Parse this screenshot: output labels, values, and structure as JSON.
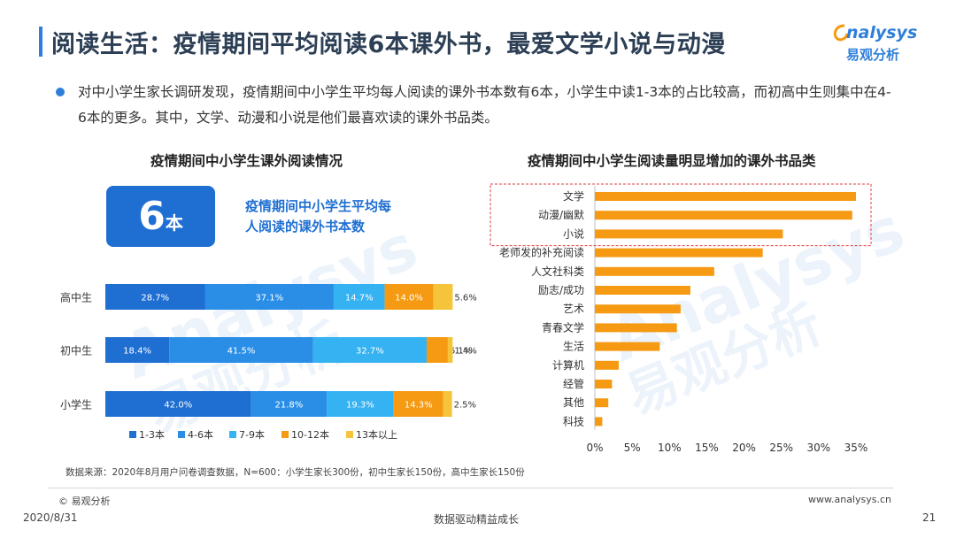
{
  "header": {
    "title": "阅读生活：疫情期间平均阅读6本课外书，最爱文学小说与动漫",
    "logo_en": "nalysys",
    "logo_cn": "易观分析"
  },
  "bullet": {
    "text": "对中小学生家长调研发现，疫情期间中小学生平均每人阅读的课外书本数有6本，小学生中读1-3本的占比较高，而初高中生则集中在4-6本的更多。其中，文学、动漫和小说是他们最喜欢读的课外书品类。"
  },
  "highlight": {
    "number": "6",
    "unit": "本",
    "desc_line1": "疫情期间中小学生平均每",
    "desc_line2": "人阅读的课外书本数"
  },
  "watermark": {
    "en": "Analysys",
    "cn": "易观分析"
  },
  "chart_data": [
    {
      "type": "bar",
      "orientation": "horizontal-stacked-100",
      "title": "疫情期间中小学生课外阅读情况",
      "categories": [
        "高中生",
        "初中生",
        "小学生"
      ],
      "series": [
        {
          "name": "1-3本",
          "color": "#1f6fd2",
          "values": [
            28.7,
            18.4,
            42.0
          ]
        },
        {
          "name": "4-6本",
          "color": "#2a8ee6",
          "values": [
            37.1,
            41.5,
            21.8
          ]
        },
        {
          "name": "7-9本",
          "color": "#35b2f2",
          "values": [
            14.7,
            32.7,
            19.3
          ]
        },
        {
          "name": "10-12本",
          "color": "#f59a12",
          "values": [
            14.0,
            6.1,
            14.3
          ]
        },
        {
          "name": "13本以上",
          "color": "#f5c43a",
          "values": [
            5.6,
            1.4,
            2.5
          ]
        }
      ],
      "data_labels": [
        [
          "28.7%",
          "37.1%",
          "14.7%",
          "14.0%",
          "5.6%"
        ],
        [
          "18.4%",
          "41.5%",
          "32.7%",
          "6.1%",
          "1.4%"
        ],
        [
          "42.0%",
          "21.8%",
          "19.3%",
          "14.3%",
          "2.5%"
        ]
      ],
      "legend": "bottom"
    },
    {
      "type": "bar",
      "orientation": "horizontal",
      "title": "疫情期间中小学生阅读量明显增加的课外书品类",
      "categories": [
        "文学",
        "动漫/幽默",
        "小说",
        "老师发的补充阅读",
        "人文社科类",
        "励志/成功",
        "艺术",
        "青春文学",
        "生活",
        "计算机",
        "经管",
        "其他",
        "科技"
      ],
      "values": [
        35.0,
        34.5,
        25.2,
        22.5,
        16.0,
        12.8,
        11.5,
        11.0,
        8.7,
        3.2,
        2.3,
        1.8,
        1.0
      ],
      "color": "#f59a12",
      "highlight_color": "#f59a12",
      "highlight_box": [
        "文学",
        "动漫/幽默",
        "小说"
      ],
      "highlight_box_color": "#e03c3c",
      "xlim": [
        0,
        35
      ],
      "xticks": [
        "0%",
        "5%",
        "10%",
        "15%",
        "20%",
        "25%",
        "30%",
        "35%"
      ]
    }
  ],
  "source": "数据来源：2020年8月用户问卷调查数据，N=600：小学生家长300份，初中生家长150份，高中生家长150份",
  "footer": {
    "copyright": "© 易观分析",
    "website": "www.analysys.cn",
    "date": "2020/8/31",
    "slogan": "数据驱动精益成长",
    "page": "21"
  }
}
